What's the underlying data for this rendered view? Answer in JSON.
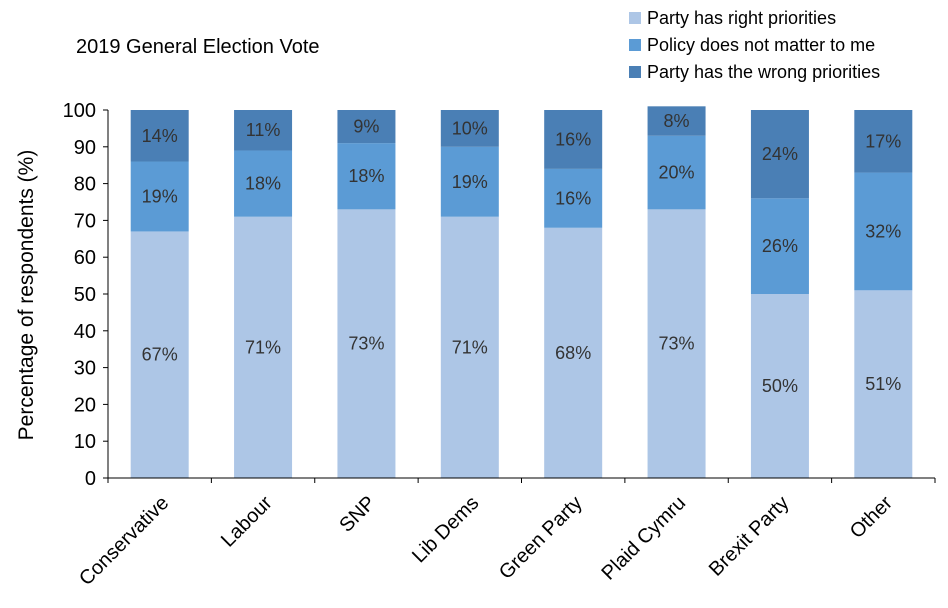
{
  "chart_data": {
    "type": "bar",
    "stacked": true,
    "title": "2019 General Election Vote",
    "xlabel": "",
    "ylabel": "Percentage of respondents (%)",
    "ylim": [
      0,
      100
    ],
    "yticks": [
      0,
      10,
      20,
      30,
      40,
      50,
      60,
      70,
      80,
      90,
      100
    ],
    "grid": false,
    "legend_position": "top-right",
    "categories": [
      "Conservative",
      "Labour",
      "SNP",
      "Lib Dems",
      "Green Party",
      "Plaid Cymru",
      "Brexit Party",
      "Other"
    ],
    "series": [
      {
        "name": "Party has right priorities",
        "color": "#adc6e6",
        "values": [
          67,
          71,
          73,
          71,
          68,
          73,
          50,
          51
        ],
        "labels": [
          "67%",
          "71%",
          "73%",
          "71%",
          "68%",
          "73%",
          "50%",
          "51%"
        ]
      },
      {
        "name": "Policy does not matter to me",
        "color": "#5b9bd5",
        "values": [
          19,
          18,
          18,
          19,
          16,
          20,
          26,
          32
        ],
        "labels": [
          "19%",
          "18%",
          "18%",
          "19%",
          "16%",
          "20%",
          "26%",
          "32%"
        ]
      },
      {
        "name": "Party has the wrong priorities",
        "color": "#4a7fb5",
        "values": [
          14,
          11,
          9,
          10,
          16,
          8,
          24,
          17
        ],
        "labels": [
          "14%",
          "11%",
          "9%",
          "10%",
          "16%",
          "8%",
          "24%",
          "17%"
        ]
      }
    ]
  }
}
